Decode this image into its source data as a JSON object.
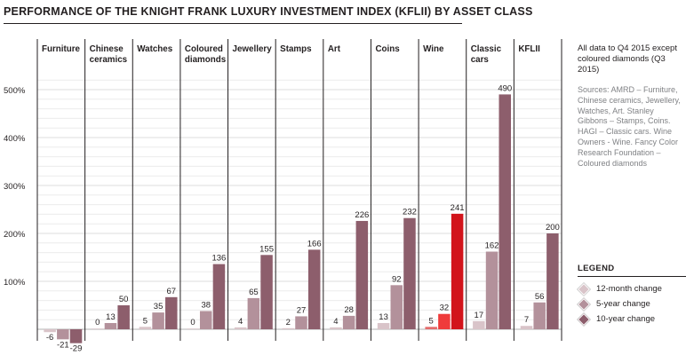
{
  "chart_data": {
    "type": "bar",
    "title": "PERFORMANCE OF THE KNIGHT FRANK LUXURY INVESTMENT INDEX (KFLII) BY ASSET CLASS",
    "categories": [
      [
        "Furniture"
      ],
      [
        "Chinese",
        "ceramics"
      ],
      [
        "Watches"
      ],
      [
        "Coloured",
        "diamonds"
      ],
      [
        "Jewellery"
      ],
      [
        "Stamps"
      ],
      [
        "Art"
      ],
      [
        "Coins"
      ],
      [
        "Wine"
      ],
      [
        "Classic",
        "cars"
      ],
      [
        "KFLII"
      ]
    ],
    "series": [
      {
        "name": "12-month change",
        "values": [
          -6,
          0,
          5,
          0,
          4,
          2,
          4,
          13,
          5,
          17,
          7
        ]
      },
      {
        "name": "5-year change",
        "values": [
          -21,
          13,
          35,
          38,
          65,
          27,
          28,
          92,
          32,
          162,
          56
        ]
      },
      {
        "name": "10-year change",
        "values": [
          -29,
          50,
          67,
          136,
          155,
          166,
          226,
          232,
          241,
          490,
          200
        ]
      }
    ],
    "value_labels": [
      [
        "-6",
        "-21",
        "-29"
      ],
      [
        "0",
        "13",
        "50"
      ],
      [
        "5",
        "35",
        "67"
      ],
      [
        "0",
        "38",
        "136"
      ],
      [
        "4",
        "65",
        "155"
      ],
      [
        "2",
        "27",
        "166"
      ],
      [
        "4",
        "28",
        "226"
      ],
      [
        "13",
        "92",
        "232"
      ],
      [
        "5",
        "32",
        "241"
      ],
      [
        "17",
        "162",
        "490"
      ],
      [
        "7",
        "56",
        "200"
      ]
    ],
    "y_ticks": [
      100,
      200,
      300,
      400,
      500
    ],
    "y_tick_labels": [
      "100%",
      "200%",
      "300%",
      "400%",
      "500%"
    ],
    "ylim": [
      -40,
      560
    ],
    "grid": true,
    "legend_position": "bottom-right"
  },
  "colors": {
    "s12": "#d9c4c9",
    "s5": "#b3919b",
    "s10": "#8d5e6c",
    "wine12": "#e46b6b",
    "wine5": "#ef3b3b",
    "wine10": "#d2141b",
    "grid": "#ececec",
    "divider": "#231f20"
  },
  "highlight_category": 8,
  "notes": {
    "data_note": "All data to Q4 2015 except coloured diamonds (Q3 2015)",
    "sources": "Sources: AMRD – Furniture, Chinese ceramics, Jewellery, Watches, Art. Stanley Gibbons – Stamps, Coins. HAGI – Classic cars. Wine Owners - Wine. Fancy Color Research Foundation – Coloured diamonds"
  },
  "legend": {
    "title": "LEGEND",
    "items": [
      "12-month change",
      "5-year change",
      "10-year change"
    ]
  }
}
